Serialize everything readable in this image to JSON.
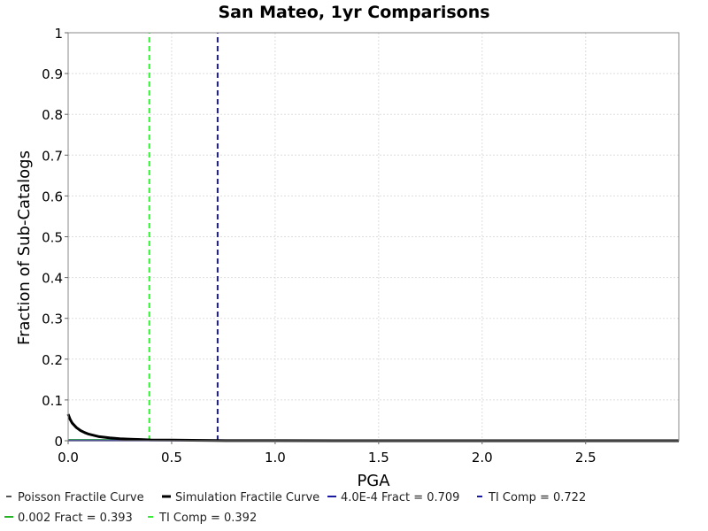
{
  "chart_data": {
    "type": "line",
    "title": "San Mateo, 1yr Comparisons",
    "xlabel": "PGA",
    "ylabel": "Fraction of Sub-Catalogs",
    "xlim": [
      0,
      2.95
    ],
    "ylim": [
      0,
      1
    ],
    "x_ticks": [
      "0.0",
      "0.5",
      "1.0",
      "1.5",
      "2.0",
      "2.5"
    ],
    "x_tick_values": [
      0,
      0.5,
      1.0,
      1.5,
      2.0,
      2.5
    ],
    "y_ticks": [
      "0",
      "0.1",
      "0.2",
      "0.3",
      "0.4",
      "0.5",
      "0.6",
      "0.7",
      "0.8",
      "0.9",
      "1"
    ],
    "y_tick_values": [
      0,
      0.1,
      0.2,
      0.3,
      0.4,
      0.5,
      0.6,
      0.7,
      0.8,
      0.9,
      1
    ],
    "grid": true,
    "legend_position": "bottom",
    "series": [
      {
        "name": "Poisson Fractile Curve",
        "color": "#555555",
        "style": "dashed",
        "x": [
          0.0,
          2.95
        ],
        "y": [
          0.0,
          0.0
        ]
      },
      {
        "name": "Simulation Fractile Curve",
        "color": "#000000",
        "style": "solid",
        "x": [
          0.0,
          0.01,
          0.02,
          0.04,
          0.06,
          0.08,
          0.1,
          0.15,
          0.2,
          0.25,
          0.3,
          0.35,
          0.4,
          0.5,
          0.6,
          0.72,
          0.8,
          1.0,
          1.5,
          2.0,
          2.5,
          2.95
        ],
        "y": [
          0.065,
          0.052,
          0.043,
          0.032,
          0.025,
          0.02,
          0.016,
          0.01,
          0.007,
          0.005,
          0.004,
          0.003,
          0.002,
          0.0015,
          0.001,
          0.0004,
          0.0003,
          0.0002,
          0.0001,
          0.0,
          0.0,
          0.0
        ]
      },
      {
        "name": "4.0E-4 Fract = 0.709",
        "color": "#1a1aa0",
        "style": "solid",
        "x": [
          0.0,
          0.709
        ],
        "y": [
          0.0004,
          0.0004
        ]
      },
      {
        "name": "TI Comp = 0.722",
        "color": "#1a1aa0",
        "style": "dashed",
        "x": [
          0.722,
          0.722
        ],
        "y": [
          0,
          1
        ]
      },
      {
        "name": "0.002 Fract = 0.393",
        "color": "#22b422",
        "style": "solid",
        "x": [
          0.0,
          0.393
        ],
        "y": [
          0.002,
          0.002
        ]
      },
      {
        "name": "TI Comp = 0.392",
        "color": "#33ee33",
        "style": "dashed",
        "x": [
          0.392,
          0.392
        ],
        "y": [
          0,
          1
        ]
      }
    ]
  }
}
